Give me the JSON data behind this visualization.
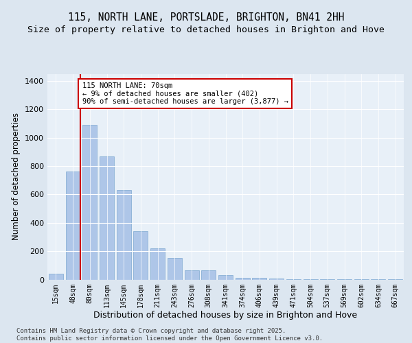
{
  "title": "115, NORTH LANE, PORTSLADE, BRIGHTON, BN41 2HH",
  "subtitle": "Size of property relative to detached houses in Brighton and Hove",
  "xlabel": "Distribution of detached houses by size in Brighton and Hove",
  "ylabel": "Number of detached properties",
  "categories": [
    "15sqm",
    "48sqm",
    "80sqm",
    "113sqm",
    "145sqm",
    "178sqm",
    "211sqm",
    "243sqm",
    "276sqm",
    "308sqm",
    "341sqm",
    "374sqm",
    "406sqm",
    "439sqm",
    "471sqm",
    "504sqm",
    "537sqm",
    "569sqm",
    "602sqm",
    "634sqm",
    "667sqm"
  ],
  "values": [
    40,
    760,
    1090,
    870,
    630,
    340,
    220,
    150,
    65,
    65,
    30,
    10,
    10,
    5,
    2,
    2,
    1,
    1,
    1,
    1,
    1
  ],
  "bar_color": "#aec6e8",
  "bar_edgecolor": "#7ba7d0",
  "vline_color": "#cc0000",
  "annotation_text": "115 NORTH LANE: 70sqm\n← 9% of detached houses are smaller (402)\n90% of semi-detached houses are larger (3,877) →",
  "annotation_box_color": "#ffffff",
  "annotation_box_edgecolor": "#cc0000",
  "ylim": [
    0,
    1450
  ],
  "yticks": [
    0,
    200,
    400,
    600,
    800,
    1000,
    1200,
    1400
  ],
  "bg_color": "#dce6f0",
  "plot_bg_color": "#e8f0f8",
  "footer": "Contains HM Land Registry data © Crown copyright and database right 2025.\nContains public sector information licensed under the Open Government Licence v3.0.",
  "title_fontsize": 10.5,
  "subtitle_fontsize": 9.5,
  "xlabel_fontsize": 9,
  "ylabel_fontsize": 8.5,
  "footer_fontsize": 6.5,
  "tick_fontsize": 7
}
